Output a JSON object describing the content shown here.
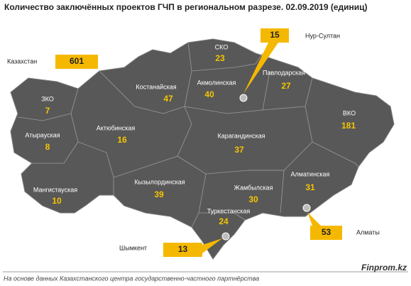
{
  "title": "Количество заключённых проектов ГЧП в региональном разрезе. 02.09.2019 (единиц)",
  "total": {
    "label": "Казахстан",
    "value": 601
  },
  "regions": [
    {
      "name": "ЗКО",
      "value": 7
    },
    {
      "name": "Атырауская",
      "value": 8
    },
    {
      "name": "Мангистауская",
      "value": 10
    },
    {
      "name": "Актюбинская",
      "value": 16
    },
    {
      "name": "Костанайская",
      "value": 47
    },
    {
      "name": "СКО",
      "value": 23
    },
    {
      "name": "Акмолинская",
      "value": 40
    },
    {
      "name": "Павлодарская",
      "value": 27
    },
    {
      "name": "ВКО",
      "value": 181
    },
    {
      "name": "Карагандинская",
      "value": 37
    },
    {
      "name": "Кызылординская",
      "value": 39
    },
    {
      "name": "Жамбылская",
      "value": 30
    },
    {
      "name": "Алматинская",
      "value": 31
    },
    {
      "name": "Туркестанская",
      "value": 24
    }
  ],
  "cities": [
    {
      "name": "Нур-Султан",
      "value": 15
    },
    {
      "name": "Алматы",
      "value": 53
    },
    {
      "name": "Шымкент",
      "value": 13
    }
  ],
  "footer": {
    "source": "На основе данных Казахстанского центра государственно-частного партнёрства",
    "brand": "Finprom.kz"
  }
}
